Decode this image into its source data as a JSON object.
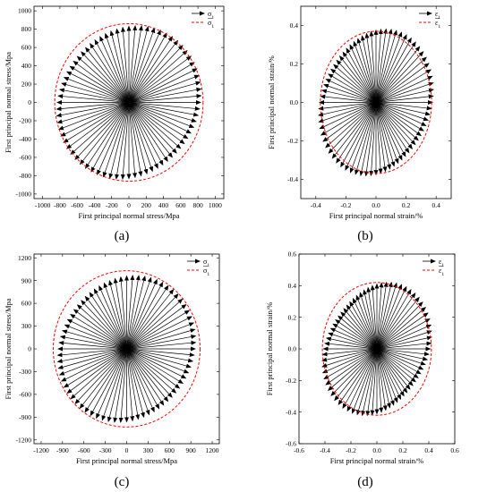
{
  "chart_data": [
    {
      "id": "a",
      "type": "scatter",
      "panel_label": "(a)",
      "xlabel": "First principal normal stress/Mpa",
      "ylabel": "First principal normal stress/Mpa",
      "xlim": [
        -1100,
        1100
      ],
      "ylim": [
        -1050,
        1050
      ],
      "xticks": [
        -1000,
        -800,
        -600,
        -400,
        -200,
        0,
        200,
        400,
        600,
        800,
        1000
      ],
      "yticks": [
        -1000,
        -800,
        -600,
        -400,
        -200,
        0,
        200,
        400,
        600,
        800,
        1000
      ],
      "xtick_labels": [
        "-1000",
        "-800",
        "-600",
        "-400",
        "-200",
        "0",
        "200",
        "400",
        "600",
        "800",
        "1000"
      ],
      "ytick_labels": [
        "-1000",
        "-800",
        "-600",
        "-400",
        "-200",
        "0",
        "200",
        "400",
        "600",
        "800",
        "1000"
      ],
      "legend": {
        "placement": "top-right",
        "entries": [
          "σ",
          "σ"
        ]
      },
      "series": [
        {
          "name": "σ",
          "style": "arrow",
          "color": "#000000",
          "angles_deg_count": 72,
          "radius_min": 780,
          "radius_max": 880
        },
        {
          "name": "σ",
          "style": "dashed-circle",
          "color": "#ff0000",
          "radius": 860
        }
      ]
    },
    {
      "id": "b",
      "type": "scatter",
      "panel_label": "(b)",
      "xlabel": "First principal normal strain/%",
      "ylabel": "First principal normal strain/%",
      "xlim": [
        -0.5,
        0.5
      ],
      "ylim": [
        -0.5,
        0.5
      ],
      "xticks": [
        -0.4,
        -0.2,
        0.0,
        0.2,
        0.4
      ],
      "yticks": [
        -0.4,
        -0.2,
        0.0,
        0.2,
        0.4
      ],
      "xtick_labels": [
        "-0.4",
        "-0.2",
        "0.0",
        "0.2",
        "0.4"
      ],
      "ytick_labels": [
        "-0.4",
        "-0.2",
        "0.0",
        "0.2",
        "0.4"
      ],
      "legend": {
        "placement": "top-right",
        "entries": [
          "ε",
          "ε"
        ]
      },
      "series": [
        {
          "name": "ε",
          "style": "arrow",
          "color": "#000000",
          "angles_deg_count": 72,
          "radius_min": 0.34,
          "radius_max": 0.41
        },
        {
          "name": "ε",
          "style": "dashed-circle",
          "color": "#ff0000",
          "radius": 0.37
        }
      ]
    },
    {
      "id": "c",
      "type": "scatter",
      "panel_label": "(c)",
      "xlabel": "First principal normal stress/Mpa",
      "ylabel": "First principal normal stress/Mpa",
      "xlim": [
        -1300,
        1300
      ],
      "ylim": [
        -1250,
        1250
      ],
      "xticks": [
        -1200,
        -900,
        -600,
        -300,
        0,
        300,
        600,
        900,
        1200
      ],
      "yticks": [
        -1200,
        -900,
        -600,
        -300,
        0,
        300,
        600,
        900,
        1200
      ],
      "xtick_labels": [
        "-1200",
        "-900",
        "-600",
        "-300",
        "0",
        "300",
        "600",
        "900",
        "1200"
      ],
      "ytick_labels": [
        "-1200",
        "-900",
        "-600",
        "-300",
        "0",
        "300",
        "600",
        "900",
        "1200"
      ],
      "legend": {
        "placement": "top-right",
        "entries": [
          "σ",
          "σ"
        ]
      },
      "series": [
        {
          "name": "σ",
          "style": "arrow",
          "color": "#000000",
          "angles_deg_count": 72,
          "radius_min": 900,
          "radius_max": 1020
        },
        {
          "name": "σ",
          "style": "dashed-circle",
          "color": "#ff0000",
          "radius": 1030
        }
      ]
    },
    {
      "id": "d",
      "type": "scatter",
      "panel_label": "(d)",
      "xlabel": "First principal normal strain/%",
      "ylabel": "First principal normal strain/%",
      "xlim": [
        -0.6,
        0.6
      ],
      "ylim": [
        -0.6,
        0.6
      ],
      "xticks": [
        -0.6,
        -0.4,
        -0.2,
        0.0,
        0.2,
        0.4,
        0.6
      ],
      "yticks": [
        -0.6,
        -0.4,
        -0.2,
        0.0,
        0.2,
        0.4,
        0.6
      ],
      "xtick_labels": [
        "-0.6",
        "-0.4",
        "-0.2",
        "0.0",
        "0.2",
        "0.4",
        "0.6"
      ],
      "ytick_labels": [
        "-0.6",
        "-0.4",
        "-0.2",
        "0.0",
        "0.2",
        "0.4",
        "0.6"
      ],
      "legend": {
        "placement": "top-right",
        "entries": [
          "ε",
          "ε"
        ]
      },
      "series": [
        {
          "name": "ε",
          "style": "arrow",
          "color": "#000000",
          "angles_deg_count": 72,
          "radius_min": 0.36,
          "radius_max": 0.46
        },
        {
          "name": "ε",
          "style": "dashed-circle",
          "color": "#ff0000",
          "radius": 0.42
        }
      ]
    }
  ]
}
